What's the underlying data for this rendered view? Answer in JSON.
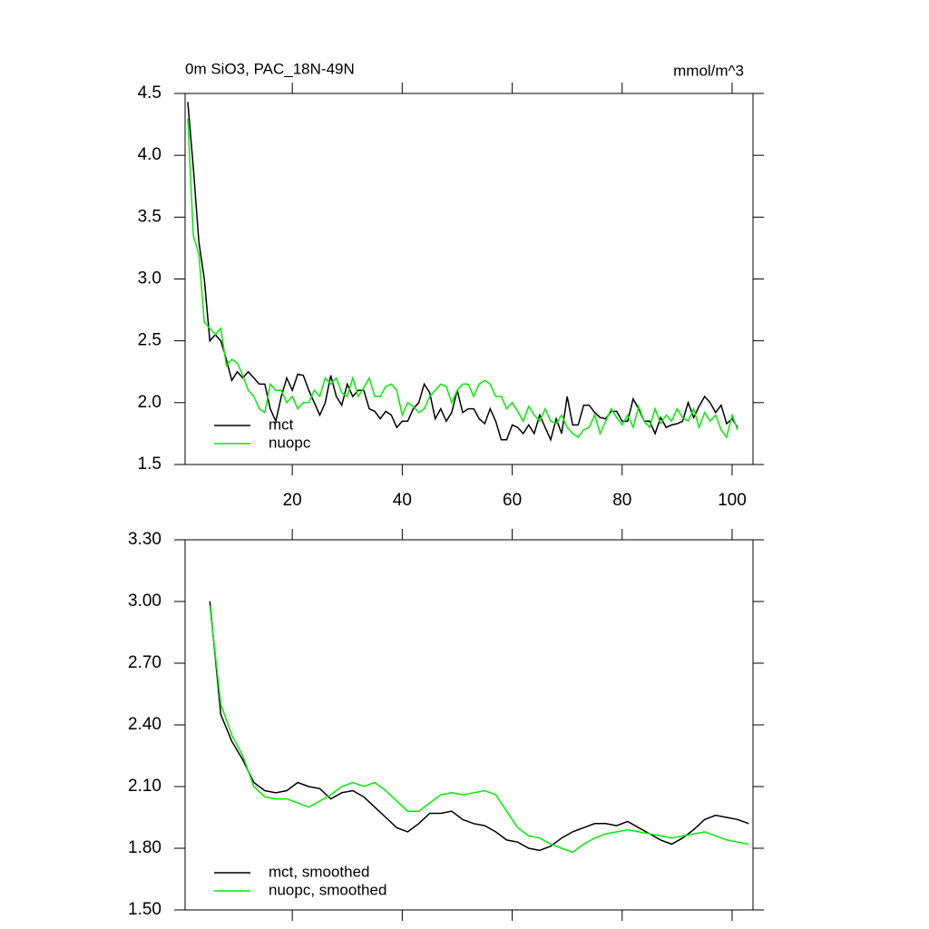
{
  "chart_data": [
    {
      "type": "line",
      "title": "0m SiO3, PAC_18N-49N",
      "subtitle": "mmol/m^3",
      "x": [
        1,
        2,
        3,
        4,
        5,
        6,
        7,
        8,
        9,
        10,
        11,
        12,
        13,
        14,
        15,
        16,
        17,
        18,
        19,
        20,
        21,
        22,
        23,
        24,
        25,
        26,
        27,
        28,
        29,
        30,
        31,
        32,
        33,
        34,
        35,
        36,
        37,
        38,
        39,
        40,
        41,
        42,
        43,
        44,
        45,
        46,
        47,
        48,
        49,
        50,
        51,
        52,
        53,
        54,
        55,
        56,
        57,
        58,
        59,
        60,
        61,
        62,
        63,
        64,
        65,
        66,
        67,
        68,
        69,
        70,
        71,
        72,
        73,
        74,
        75,
        76,
        77,
        78,
        79,
        80,
        81,
        82,
        83,
        84,
        85,
        86,
        87,
        88,
        89,
        90,
        91,
        92,
        93,
        94,
        95,
        96,
        97,
        98,
        99,
        100,
        101
      ],
      "series": [
        {
          "name": "mct",
          "color": "#000000",
          "values": [
            4.43,
            3.9,
            3.3,
            3.0,
            2.5,
            2.55,
            2.5,
            2.35,
            2.18,
            2.25,
            2.2,
            2.25,
            2.2,
            2.15,
            2.15,
            1.95,
            1.85,
            2.05,
            2.2,
            2.1,
            2.23,
            2.22,
            2.1,
            2.0,
            1.9,
            2.0,
            2.22,
            2.05,
            1.98,
            2.15,
            2.05,
            2.1,
            2.1,
            1.95,
            1.93,
            1.87,
            1.93,
            1.9,
            1.8,
            1.85,
            1.85,
            1.95,
            2.0,
            2.15,
            2.08,
            1.87,
            1.95,
            1.85,
            1.92,
            2.1,
            1.92,
            1.95,
            1.95,
            1.87,
            1.83,
            1.95,
            1.85,
            1.7,
            1.7,
            1.82,
            1.8,
            1.75,
            1.82,
            1.75,
            1.9,
            1.8,
            1.7,
            1.87,
            1.75,
            2.05,
            1.82,
            1.82,
            1.98,
            1.98,
            1.92,
            1.88,
            1.87,
            1.93,
            1.93,
            1.85,
            1.85,
            2.03,
            1.95,
            1.85,
            1.85,
            1.75,
            1.88,
            1.8,
            1.82,
            1.83,
            1.85,
            2.0,
            1.88,
            1.97,
            2.05,
            2.0,
            1.92,
            1.98,
            1.83,
            1.87,
            1.8
          ]
        },
        {
          "name": "nuopc",
          "color": "#00ee00",
          "values": [
            4.3,
            3.35,
            3.2,
            2.65,
            2.6,
            2.55,
            2.6,
            2.3,
            2.35,
            2.32,
            2.22,
            2.1,
            2.05,
            1.95,
            1.92,
            2.15,
            2.1,
            2.1,
            2.0,
            2.05,
            1.95,
            2.0,
            2.0,
            2.1,
            2.05,
            2.2,
            2.15,
            2.2,
            2.08,
            2.05,
            2.2,
            2.05,
            2.12,
            2.2,
            2.05,
            2.05,
            2.13,
            2.15,
            2.1,
            1.9,
            2.0,
            1.97,
            1.92,
            1.95,
            2.05,
            2.1,
            2.15,
            2.13,
            2.0,
            2.1,
            2.15,
            2.15,
            2.05,
            2.15,
            2.18,
            2.15,
            2.05,
            2.05,
            1.95,
            2.0,
            1.93,
            1.85,
            1.97,
            1.9,
            1.85,
            1.95,
            1.85,
            1.83,
            1.9,
            1.8,
            1.75,
            1.72,
            1.78,
            1.8,
            1.9,
            1.75,
            1.85,
            1.95,
            1.88,
            1.82,
            1.9,
            1.8,
            1.97,
            1.85,
            1.8,
            1.95,
            1.83,
            1.9,
            1.85,
            1.95,
            1.88,
            1.85,
            1.95,
            1.8,
            1.92,
            1.85,
            1.9,
            1.78,
            1.72,
            1.9,
            1.78
          ]
        }
      ],
      "xlim": [
        0.5,
        103.8
      ],
      "xticks": [
        20,
        40,
        60,
        80,
        100
      ],
      "ylim": [
        1.5,
        4.5
      ],
      "yticks": [
        1.5,
        {
          "value": 2,
          "label": "2.0"
        },
        2.5,
        {
          "value": 3,
          "label": "3.0"
        },
        3.5,
        {
          "value": 4,
          "label": "4.0"
        },
        4.5
      ]
    },
    {
      "type": "line",
      "x": [
        5,
        7,
        9,
        11,
        13,
        15,
        17,
        19,
        21,
        23,
        25,
        27,
        29,
        31,
        33,
        35,
        37,
        39,
        41,
        43,
        45,
        47,
        49,
        51,
        53,
        55,
        57,
        59,
        61,
        63,
        65,
        67,
        69,
        71,
        73,
        75,
        77,
        79,
        81,
        83,
        85,
        87,
        89,
        91,
        93,
        95,
        97,
        99,
        101,
        103
      ],
      "series": [
        {
          "name": "mct, smoothed",
          "color": "#000000",
          "values": [
            3.0,
            2.45,
            2.32,
            2.23,
            2.12,
            2.08,
            2.07,
            2.08,
            2.12,
            2.1,
            2.09,
            2.04,
            2.07,
            2.08,
            2.05,
            2.0,
            1.95,
            1.9,
            1.88,
            1.92,
            1.97,
            1.97,
            1.98,
            1.94,
            1.92,
            1.91,
            1.88,
            1.84,
            1.83,
            1.8,
            1.79,
            1.81,
            1.85,
            1.88,
            1.9,
            1.92,
            1.92,
            1.91,
            1.93,
            1.9,
            1.87,
            1.84,
            1.82,
            1.85,
            1.89,
            1.94,
            1.96,
            1.95,
            1.94,
            1.92
          ]
        },
        {
          "name": "nuopc, smoothed",
          "color": "#00ee00",
          "values": [
            2.98,
            2.5,
            2.35,
            2.25,
            2.1,
            2.05,
            2.04,
            2.04,
            2.02,
            2.0,
            2.03,
            2.06,
            2.1,
            2.12,
            2.1,
            2.12,
            2.08,
            2.03,
            1.98,
            1.98,
            2.02,
            2.06,
            2.07,
            2.06,
            2.07,
            2.08,
            2.06,
            1.98,
            1.9,
            1.86,
            1.85,
            1.82,
            1.8,
            1.78,
            1.82,
            1.85,
            1.87,
            1.88,
            1.89,
            1.88,
            1.87,
            1.86,
            1.85,
            1.86,
            1.87,
            1.88,
            1.86,
            1.84,
            1.83,
            1.82
          ]
        }
      ],
      "xlim": [
        0.5,
        103.8
      ],
      "ylim": [
        1.5,
        3.3
      ],
      "yticks": [
        {
          "value": 1.5,
          "label": "1.50"
        },
        {
          "value": 1.8,
          "label": "1.80"
        },
        {
          "value": 2.1,
          "label": "2.10"
        },
        {
          "value": 2.4,
          "label": "2.40"
        },
        {
          "value": 2.7,
          "label": "2.70"
        },
        {
          "value": 3.0,
          "label": "3.00"
        },
        {
          "value": 3.3,
          "label": "3.30"
        }
      ]
    }
  ]
}
